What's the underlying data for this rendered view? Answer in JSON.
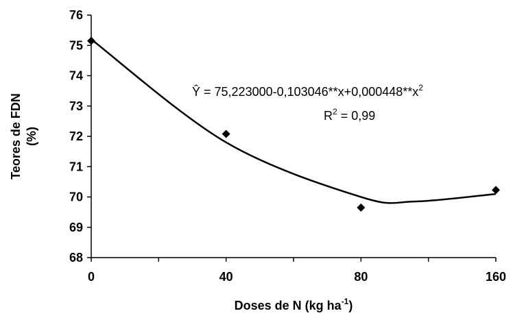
{
  "chart_data": {
    "type": "scatter",
    "xlabel": "Doses de N (kg ha",
    "xlabel_sup": "-1",
    "xlabel_end": ")",
    "ylabel_line1": "Teores de FDN",
    "ylabel_line2": "(%)",
    "x_tick_labels": [
      "0",
      "40",
      "80",
      "160"
    ],
    "ylim": [
      68,
      76
    ],
    "y_ticks": [
      68,
      69,
      70,
      71,
      72,
      73,
      74,
      75,
      76
    ],
    "points": [
      {
        "x": "0",
        "y": 75.15
      },
      {
        "x": "40",
        "y": 72.08
      },
      {
        "x": "80",
        "y": 69.65
      },
      {
        "x": "160",
        "y": 70.23
      }
    ],
    "trend_curve": {
      "note": "fitted curve drawn through the observed trend",
      "values": [
        {
          "x": "0",
          "y": 75.2
        },
        {
          "x": "40",
          "y": 71.8
        },
        {
          "x": "80",
          "y": 70.0
        },
        {
          "x": "160",
          "y": 70.1
        }
      ]
    },
    "equation": {
      "text": "Ŷ = 75,223000-0,103046**x+0,000448**x",
      "sup": "2"
    },
    "r2": {
      "pre": "R",
      "sup": "2",
      "post": " = 0,99"
    },
    "colors": {
      "marker": "#000000",
      "line": "#000000",
      "axis": "#000000"
    }
  }
}
